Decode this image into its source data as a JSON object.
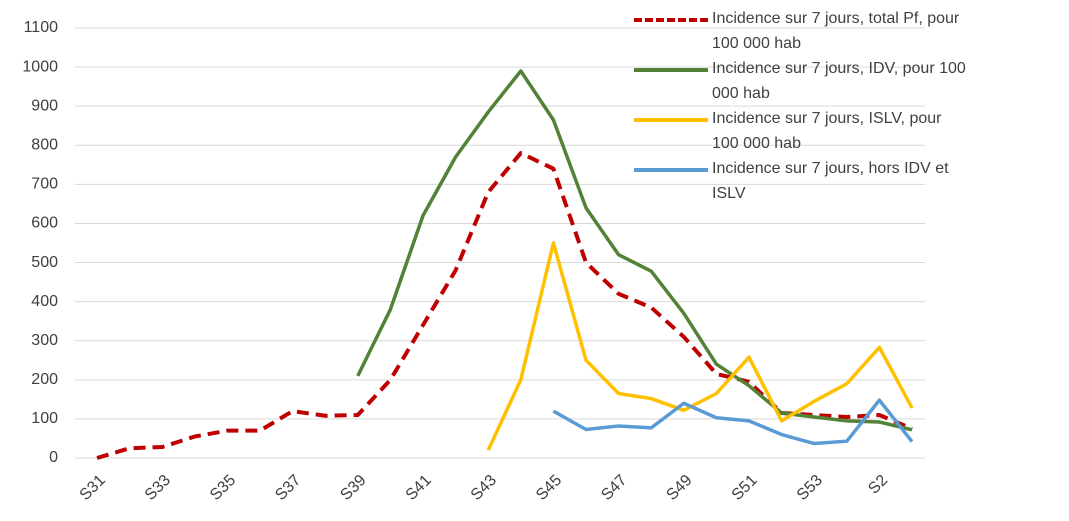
{
  "chart_data": {
    "type": "line",
    "categories": [
      "S31",
      null,
      "S33",
      null,
      "S35",
      null,
      "S37",
      null,
      "S39",
      null,
      "S41",
      null,
      "S43",
      null,
      "S45",
      null,
      "S47",
      null,
      "S49",
      null,
      "S51",
      null,
      "S53",
      null,
      "S2",
      null
    ],
    "series": [
      {
        "name": "Incidence sur 7 jours, total Pf, pour 100 000 hab",
        "color": "#c00000",
        "dashed": true,
        "values": [
          0,
          25,
          28,
          55,
          70,
          70,
          120,
          108,
          110,
          200,
          340,
          480,
          680,
          780,
          740,
          500,
          420,
          385,
          310,
          215,
          195,
          115,
          110,
          105,
          110,
          75
        ]
      },
      {
        "name": "Incidence sur 7 jours, IDV, pour 100 000 hab",
        "color": "#538135",
        "values": [
          null,
          null,
          null,
          null,
          null,
          null,
          null,
          null,
          210,
          380,
          620,
          770,
          885,
          990,
          865,
          640,
          520,
          478,
          370,
          240,
          185,
          115,
          105,
          95,
          92,
          72
        ]
      },
      {
        "name": "Incidence sur 7 jours, ISLV, pour 100 000 hab",
        "color": "#ffc000",
        "values": [
          null,
          null,
          null,
          null,
          null,
          null,
          null,
          null,
          null,
          null,
          null,
          null,
          20,
          200,
          550,
          250,
          165,
          152,
          122,
          165,
          258,
          95,
          145,
          190,
          283,
          128
        ]
      },
      {
        "name": "Incidence sur 7 jours, hors IDV et ISLV",
        "color": "#5b9bd5",
        "values": [
          null,
          null,
          null,
          null,
          null,
          null,
          null,
          null,
          null,
          null,
          null,
          null,
          null,
          null,
          120,
          73,
          82,
          77,
          140,
          103,
          95,
          60,
          37,
          43,
          148,
          42
        ]
      }
    ],
    "ylim": [
      0,
      1100
    ],
    "yticks": [
      0,
      100,
      200,
      300,
      400,
      500,
      600,
      700,
      800,
      900,
      1000,
      1100
    ],
    "grid": true,
    "legend": "top-right"
  }
}
